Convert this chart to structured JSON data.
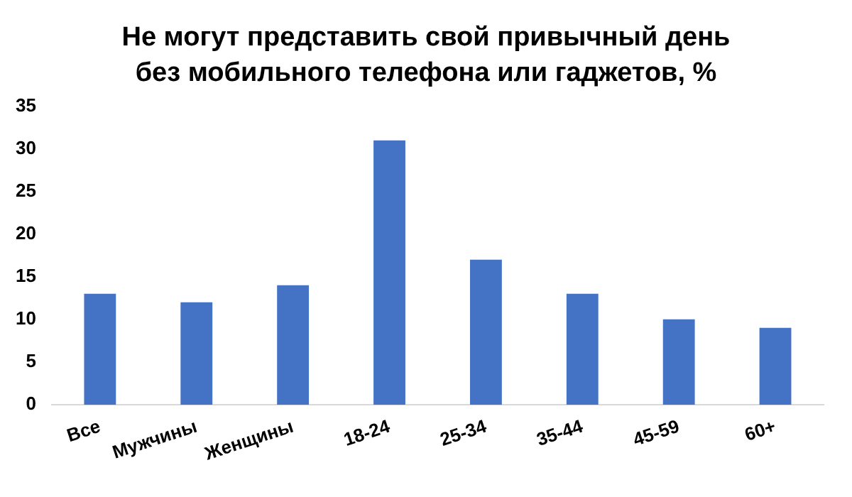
{
  "chart_data": {
    "type": "bar",
    "title": "Не могут представить свой привычный день без мобильного телефона или гаджетов, %",
    "categories": [
      "Все",
      "Мужчины",
      "Женщины",
      "18-24",
      "25-34",
      "35-44",
      "45-59",
      "60+"
    ],
    "values": [
      13,
      12,
      14,
      31,
      17,
      13,
      10,
      9
    ],
    "color": "#4472c4",
    "ylim": [
      0,
      35
    ],
    "yticks": [
      0,
      5,
      10,
      15,
      20,
      25,
      30,
      35
    ],
    "grid": false,
    "legend": false
  }
}
